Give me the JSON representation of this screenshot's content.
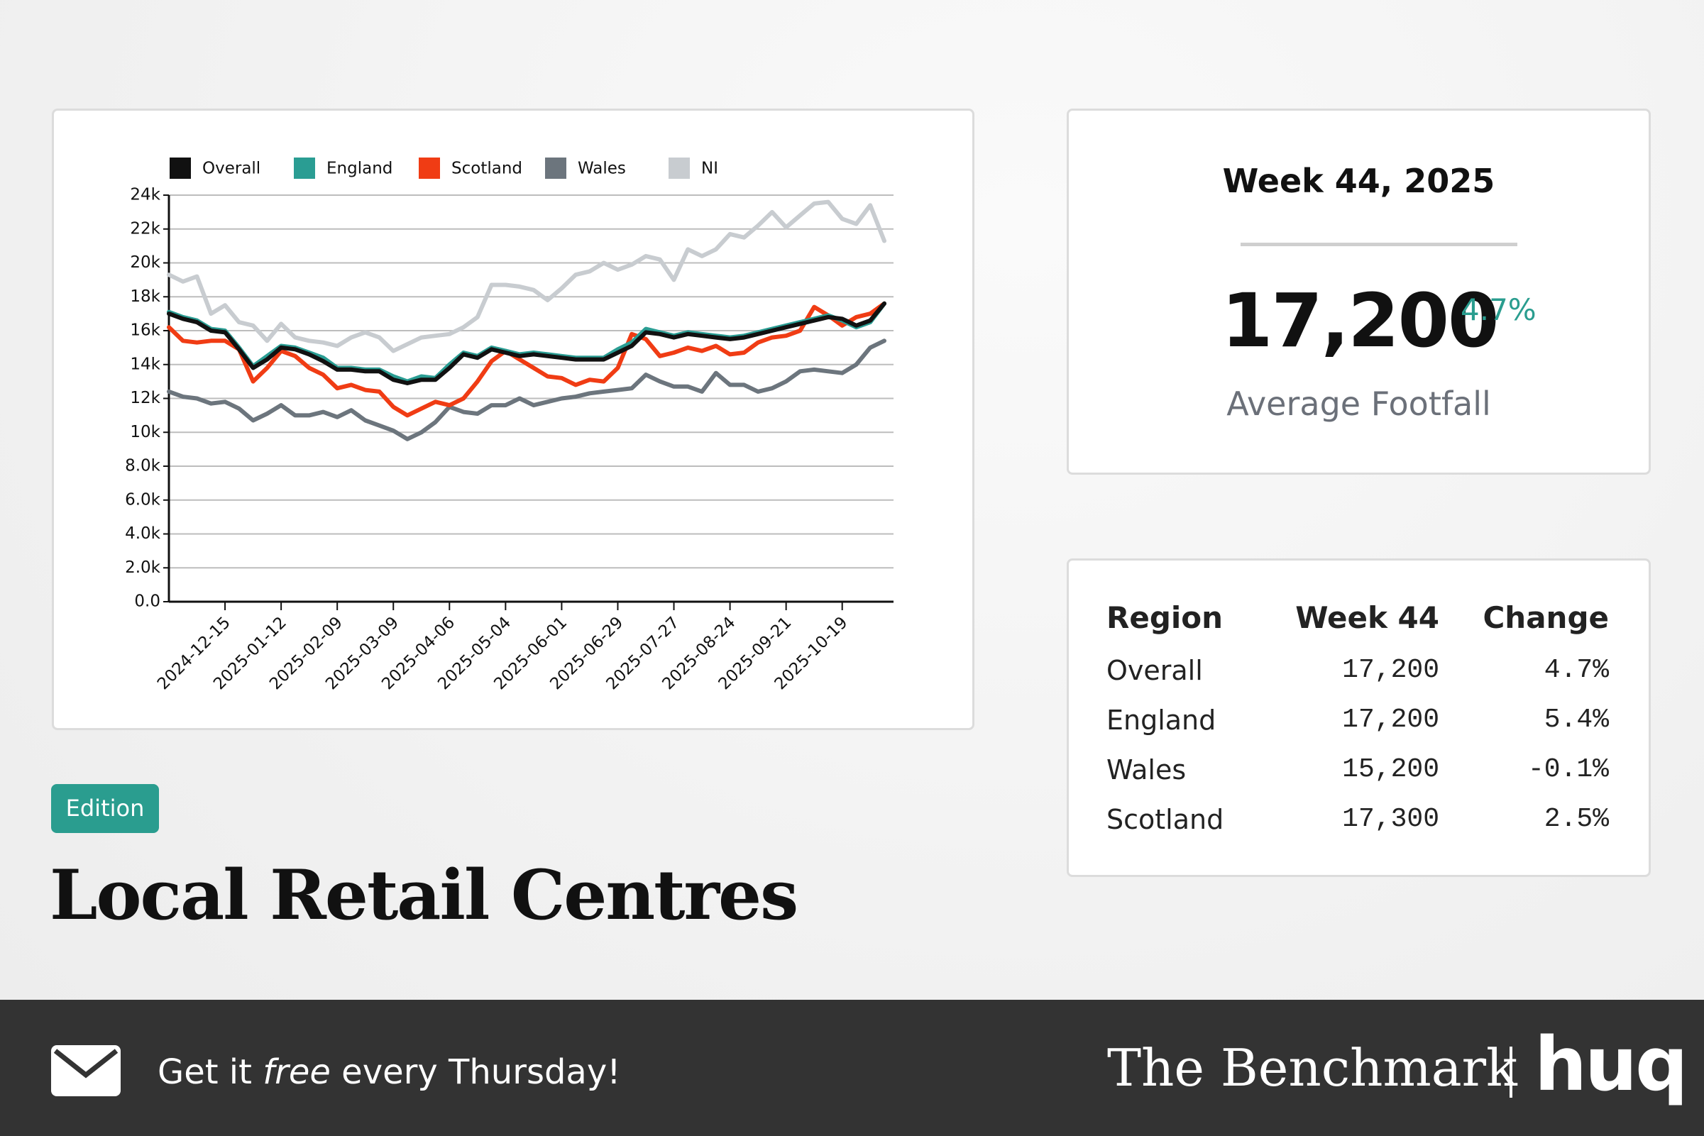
{
  "chart_data": {
    "type": "line",
    "x": [
      "2024-11-17",
      "2024-11-24",
      "2024-12-01",
      "2024-12-08",
      "2024-12-15",
      "2024-12-22",
      "2024-12-29",
      "2025-01-05",
      "2025-01-12",
      "2025-01-19",
      "2025-01-26",
      "2025-02-02",
      "2025-02-09",
      "2025-02-16",
      "2025-02-23",
      "2025-03-02",
      "2025-03-09",
      "2025-03-16",
      "2025-03-23",
      "2025-03-30",
      "2025-04-06",
      "2025-04-13",
      "2025-04-20",
      "2025-04-27",
      "2025-05-04",
      "2025-05-11",
      "2025-05-18",
      "2025-05-25",
      "2025-06-01",
      "2025-06-08",
      "2025-06-15",
      "2025-06-22",
      "2025-06-29",
      "2025-07-06",
      "2025-07-13",
      "2025-07-20",
      "2025-07-27",
      "2025-08-03",
      "2025-08-10",
      "2025-08-17",
      "2025-08-24",
      "2025-08-31",
      "2025-09-07",
      "2025-09-14",
      "2025-09-21",
      "2025-09-28",
      "2025-10-05",
      "2025-10-12",
      "2025-10-19",
      "2025-10-26",
      "2025-11-02",
      "2025-11-09"
    ],
    "xlim": [
      "2024-11-17",
      "2025-11-09"
    ],
    "xticks": [
      "2024-12-15",
      "2025-01-12",
      "2025-02-09",
      "2025-03-09",
      "2025-04-06",
      "2025-05-04",
      "2025-06-01",
      "2025-06-29",
      "2025-07-27",
      "2025-08-24",
      "2025-09-21",
      "2025-10-19"
    ],
    "ylim": [
      0,
      24000
    ],
    "yticks": [
      {
        "value": 0,
        "label": "0.0"
      },
      {
        "value": 2000,
        "label": "2.0k"
      },
      {
        "value": 4000,
        "label": "4.0k"
      },
      {
        "value": 6000,
        "label": "6.0k"
      },
      {
        "value": 8000,
        "label": "8.0k"
      },
      {
        "value": 10000,
        "label": "10k"
      },
      {
        "value": 12000,
        "label": "12k"
      },
      {
        "value": 14000,
        "label": "14k"
      },
      {
        "value": 16000,
        "label": "16k"
      },
      {
        "value": 18000,
        "label": "18k"
      },
      {
        "value": 20000,
        "label": "20k"
      },
      {
        "value": 22000,
        "label": "22k"
      },
      {
        "value": 24000,
        "label": "24k"
      }
    ],
    "grid": true,
    "legend": "top",
    "series": [
      {
        "name": "Overall",
        "color": "#111111",
        "values": [
          17000,
          16700,
          16500,
          16000,
          15900,
          14900,
          13800,
          14300,
          15000,
          14900,
          14600,
          14200,
          13700,
          13700,
          13600,
          13600,
          13100,
          12900,
          13100,
          13100,
          13800,
          14600,
          14400,
          14900,
          14700,
          14500,
          14600,
          14500,
          14400,
          14300,
          14300,
          14300,
          14700,
          15100,
          15900,
          15800,
          15600,
          15800,
          15700,
          15600,
          15500,
          15600,
          15800,
          16000,
          16200,
          16400,
          16600,
          16800,
          16700,
          16300,
          16600,
          17600
        ]
      },
      {
        "name": "England",
        "color": "#2a9d93",
        "values": [
          17100,
          16800,
          16600,
          16100,
          16000,
          15000,
          13900,
          14500,
          15100,
          15000,
          14700,
          14400,
          13800,
          13800,
          13700,
          13700,
          13300,
          13000,
          13300,
          13200,
          14000,
          14700,
          14500,
          15000,
          14800,
          14600,
          14700,
          14600,
          14500,
          14400,
          14400,
          14400,
          14900,
          15300,
          16100,
          15900,
          15700,
          15900,
          15800,
          15700,
          15600,
          15700,
          15900,
          16100,
          16300,
          16500,
          16700,
          16900,
          16600,
          16200,
          16500,
          17600
        ]
      },
      {
        "name": "Scotland",
        "color": "#f03c14",
        "values": [
          16200,
          15400,
          15300,
          15400,
          15400,
          14900,
          13000,
          13800,
          14800,
          14500,
          13800,
          13400,
          12600,
          12800,
          12500,
          12400,
          11500,
          11000,
          11400,
          11800,
          11600,
          12000,
          13000,
          14200,
          14800,
          14300,
          13800,
          13300,
          13200,
          12800,
          13100,
          13000,
          13800,
          15800,
          15500,
          14500,
          14700,
          15000,
          14800,
          15100,
          14600,
          14700,
          15300,
          15600,
          15700,
          16000,
          17400,
          16900,
          16300,
          16800,
          17000,
          17600
        ]
      },
      {
        "name": "Wales",
        "color": "#6c757d",
        "values": [
          12400,
          12100,
          12000,
          11700,
          11800,
          11400,
          10700,
          11100,
          11600,
          11000,
          11000,
          11200,
          10900,
          11300,
          10700,
          10400,
          10100,
          9600,
          10000,
          10600,
          11500,
          11200,
          11100,
          11600,
          11600,
          12000,
          11600,
          11800,
          12000,
          12100,
          12300,
          12400,
          12500,
          12600,
          13400,
          13000,
          12700,
          12700,
          12400,
          13500,
          12800,
          12800,
          12400,
          12600,
          13000,
          13600,
          13700,
          13600,
          13500,
          14000,
          15000,
          15400
        ]
      },
      {
        "name": "NI",
        "color": "#c8ccd0",
        "values": [
          19300,
          18900,
          19200,
          17000,
          17500,
          16500,
          16300,
          15400,
          16400,
          15600,
          15400,
          15300,
          15100,
          15600,
          15900,
          15600,
          14800,
          15200,
          15600,
          15700,
          15800,
          16200,
          16800,
          18700,
          18700,
          18600,
          18400,
          17800,
          18500,
          19300,
          19500,
          20000,
          19600,
          19900,
          20400,
          20200,
          19000,
          20800,
          20400,
          20800,
          21700,
          21500,
          22200,
          23000,
          22100,
          22800,
          23500,
          23600,
          22600,
          22300,
          23400,
          21300
        ]
      }
    ]
  },
  "stat_card": {
    "title": "Week 44, 2025",
    "value": "17,200",
    "change": "4.7%",
    "label": "Average Footfall"
  },
  "table": {
    "header": [
      "Region",
      "Week 44",
      "Change"
    ],
    "rows": [
      [
        "Overall",
        "17,200",
        "4.7%"
      ],
      [
        "England",
        "17,200",
        "5.4%"
      ],
      [
        "Wales",
        "15,200",
        "-0.1%"
      ],
      [
        "Scotland",
        "17,300",
        "2.5%"
      ]
    ]
  },
  "badge": "Edition",
  "headline": "Local Retail Centres",
  "footer": {
    "cta": [
      "Get it ",
      "free",
      " every Thursday!"
    ],
    "brand": "The Benchmark",
    "logo": "huq"
  }
}
